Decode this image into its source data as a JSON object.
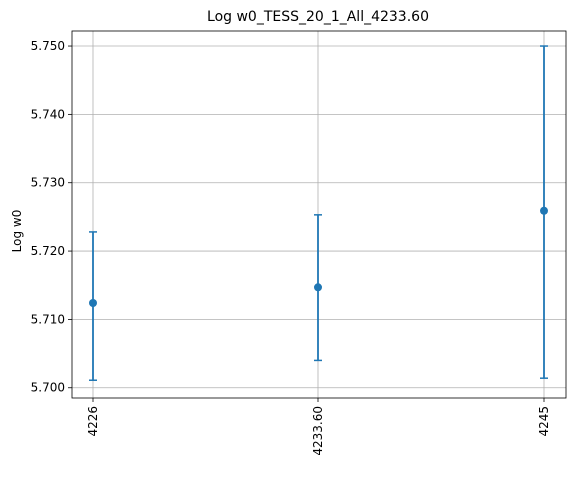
{
  "chart_data": {
    "type": "scatter",
    "title": "Log w0_TESS_20_1_All_4233.60",
    "xlabel": "",
    "ylabel": "Log w0",
    "categories": [
      "4226",
      "4233.60",
      "4245"
    ],
    "values": [
      5.7124,
      5.7147,
      5.7259
    ],
    "error_lower": [
      5.7011,
      5.704,
      5.7014
    ],
    "error_upper": [
      5.7228,
      5.7253,
      5.75
    ],
    "ylim": [
      5.6985,
      5.7522
    ],
    "yticks": [
      5.7,
      5.71,
      5.72,
      5.73,
      5.74,
      5.75
    ],
    "ytick_labels": [
      "5.700",
      "5.710",
      "5.720",
      "5.730",
      "5.740",
      "5.750"
    ],
    "grid": true,
    "color": "#1f77b4"
  }
}
